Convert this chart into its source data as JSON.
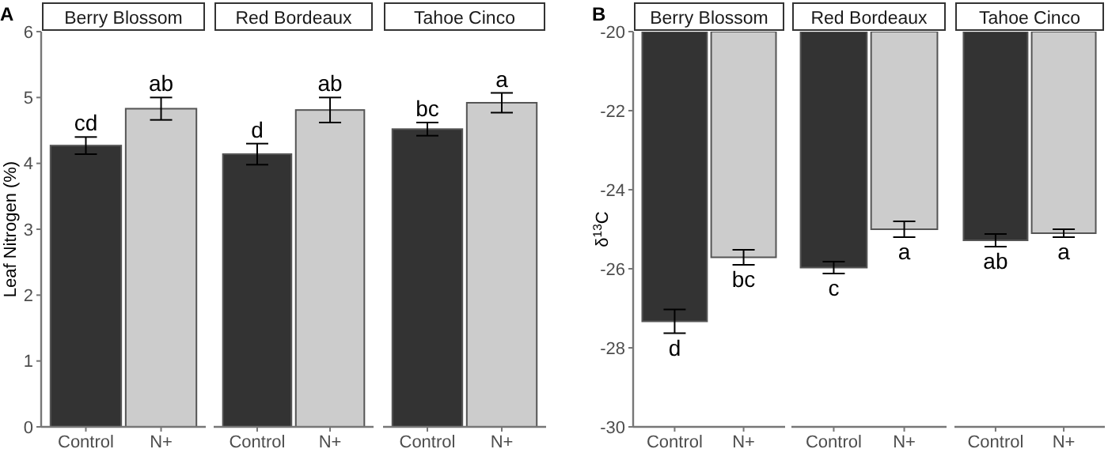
{
  "chart_data": [
    {
      "type": "bar",
      "title": "Berry Blossom",
      "ylabel": "Leaf Nitrogen (%)",
      "categories": [
        "Control",
        "N+"
      ],
      "values": [
        4.27,
        4.83
      ],
      "errors": [
        0.13,
        0.17
      ],
      "colors": [
        "#333333",
        "#cccccc"
      ],
      "ylim": [
        0,
        6
      ],
      "yticks": [
        0,
        1,
        2,
        3,
        4,
        5,
        6
      ],
      "grid": false,
      "annotations": [
        "A",
        {
          "text": "cd",
          "x": "Control",
          "y": 4.4
        },
        {
          "text": "ab",
          "x": "N+",
          "y": 5.0
        }
      ]
    },
    {
      "type": "bar",
      "title": "Red Bordeaux",
      "categories": [
        "Control",
        "N+"
      ],
      "values": [
        4.14,
        4.81
      ],
      "errors": [
        0.16,
        0.19
      ],
      "colors": [
        "#333333",
        "#cccccc"
      ],
      "ylim": [
        0,
        6
      ],
      "yticks": [
        0,
        1,
        2,
        3,
        4,
        5,
        6
      ],
      "tick_labels": "x",
      "grid": false,
      "annotations": [
        {
          "text": "d",
          "x": "Control",
          "y": 4.3
        },
        {
          "text": "ab",
          "x": "N+",
          "y": 5.0
        }
      ]
    },
    {
      "type": "bar",
      "title": "Tahoe Cinco",
      "categories": [
        "Control",
        "N+"
      ],
      "values": [
        4.52,
        4.92
      ],
      "errors": [
        0.1,
        0.15
      ],
      "colors": [
        "#333333",
        "#cccccc"
      ],
      "ylim": [
        0,
        6
      ],
      "yticks": [
        0,
        1,
        2,
        3,
        4,
        5,
        6
      ],
      "tick_labels": "x",
      "grid": false,
      "annotations": [
        {
          "text": "bc",
          "x": "Control",
          "y": 4.62
        },
        {
          "text": "a",
          "x": "N+",
          "y": 5.07
        }
      ]
    },
    {
      "type": "bar",
      "title": "Berry Blossom",
      "ylabel": "δ$^{13}$C",
      "categories": [
        "Control",
        "N+"
      ],
      "values": [
        -27.33,
        -25.71
      ],
      "errors": [
        0.3,
        0.19
      ],
      "colors": [
        "#333333",
        "#cccccc"
      ],
      "ylim": [
        -30,
        -20
      ],
      "yticks": [
        -30,
        -28,
        -26,
        -24,
        -22,
        -20
      ],
      "grid": false,
      "annotations": [
        "B",
        {
          "text": "d",
          "x": "Control",
          "y": -27.63
        },
        {
          "text": "bc",
          "x": "N+",
          "y": -25.9
        }
      ]
    },
    {
      "type": "bar",
      "title": "Red Bordeaux",
      "categories": [
        "Control",
        "N+"
      ],
      "values": [
        -25.97,
        -25.0
      ],
      "errors": [
        0.15,
        0.2
      ],
      "colors": [
        "#333333",
        "#cccccc"
      ],
      "ylim": [
        -30,
        -20
      ],
      "yticks": [
        -30,
        -28,
        -26,
        -24,
        -22,
        -20
      ],
      "tick_labels": "x",
      "grid": false,
      "annotations": [
        {
          "text": "c",
          "x": "Control",
          "y": -26.12
        },
        {
          "text": "a",
          "x": "N+",
          "y": -25.2
        }
      ]
    },
    {
      "type": "bar",
      "title": "Tahoe Cinco",
      "categories": [
        "Control",
        "N+"
      ],
      "values": [
        -25.28,
        -25.1
      ],
      "errors": [
        0.16,
        0.1
      ],
      "colors": [
        "#333333",
        "#cccccc"
      ],
      "ylim": [
        -30,
        -20
      ],
      "yticks": [
        -30,
        -28,
        -26,
        -24,
        -22,
        -20
      ],
      "tick_labels": "x",
      "grid": false,
      "annotations": [
        {
          "text": "ab",
          "x": "Control",
          "y": -25.44
        },
        {
          "text": "a",
          "x": "N+",
          "y": -25.2
        }
      ]
    }
  ]
}
